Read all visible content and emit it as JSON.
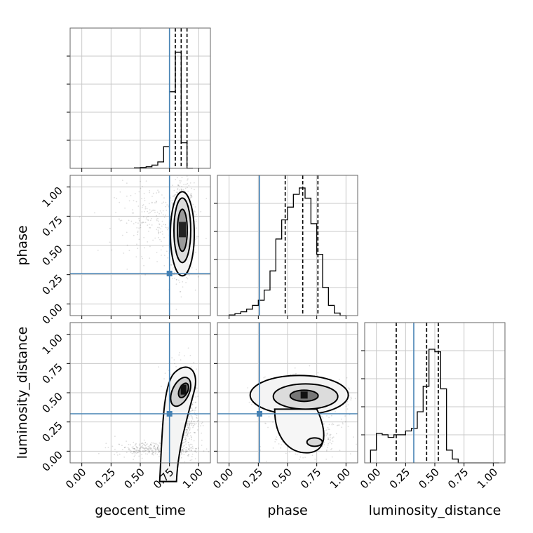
{
  "chart_data": {
    "type": "corner",
    "parameters": [
      "geocent_time",
      "phase",
      "luminosity_distance"
    ],
    "axis_range": [
      -0.1,
      1.1
    ],
    "ticks": [
      0.0,
      0.25,
      0.5,
      0.75,
      1.0
    ],
    "tick_labels": [
      "0.00",
      "0.25",
      "0.50",
      "0.75",
      "1.00"
    ],
    "injection": {
      "geocent_time": 0.75,
      "phase": 0.26,
      "luminosity_distance": 0.32
    },
    "injection_color": "#4682b4",
    "grid": true,
    "histograms": {
      "geocent_time": {
        "bin_edges": [
          0.45,
          0.5,
          0.55,
          0.6,
          0.65,
          0.7,
          0.75,
          0.8,
          0.85,
          0.9,
          0.95
        ],
        "counts": [
          0.004,
          0.007,
          0.012,
          0.025,
          0.05,
          0.17,
          0.6,
          0.91,
          0.2,
          0.0
        ],
        "quantiles": [
          0.8,
          0.85,
          0.9
        ]
      },
      "phase": {
        "bin_edges": [
          0.0,
          0.05,
          0.1,
          0.15,
          0.2,
          0.25,
          0.3,
          0.35,
          0.4,
          0.45,
          0.5,
          0.55,
          0.6,
          0.65,
          0.7,
          0.75,
          0.8,
          0.85,
          0.9,
          0.95,
          1.0
        ],
        "counts": [
          0.005,
          0.015,
          0.03,
          0.05,
          0.08,
          0.12,
          0.2,
          0.35,
          0.6,
          0.75,
          0.85,
          0.95,
          1.0,
          0.92,
          0.72,
          0.48,
          0.22,
          0.08,
          0.02,
          0.0
        ],
        "quantiles": [
          0.48,
          0.63,
          0.76
        ]
      },
      "luminosity_distance": {
        "bin_edges": [
          -0.05,
          0.0,
          0.05,
          0.1,
          0.15,
          0.2,
          0.25,
          0.3,
          0.35,
          0.4,
          0.45,
          0.5,
          0.55,
          0.6,
          0.65,
          0.7,
          0.75,
          0.8,
          0.85,
          0.9,
          0.95,
          1.0,
          1.05
        ],
        "counts": [
          0.1,
          0.23,
          0.22,
          0.2,
          0.22,
          0.22,
          0.25,
          0.27,
          0.4,
          0.6,
          0.89,
          0.87,
          0.58,
          0.1,
          0.03,
          0.0,
          0.0,
          0.0,
          0.0,
          0.0,
          0.0,
          0.0
        ],
        "quantiles": [
          0.17,
          0.43,
          0.53
        ]
      }
    },
    "density_peaks": {
      "phase_vs_geocent_time": {
        "x": 0.86,
        "y": 0.63
      },
      "luminosity_distance_vs_geocent_time": {
        "x": 0.87,
        "y": 0.52
      },
      "luminosity_distance_vs_phase": {
        "x": 0.63,
        "y": 0.48
      }
    }
  }
}
